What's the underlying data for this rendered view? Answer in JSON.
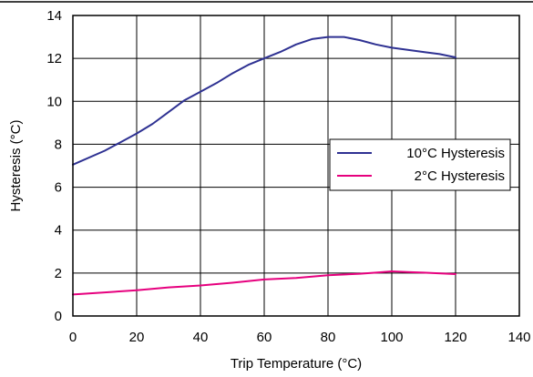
{
  "chart_data": {
    "type": "line",
    "xlabel": "Trip Temperature (°C)",
    "ylabel": "Hysteresis (°C)",
    "xlim": [
      0,
      140
    ],
    "ylim": [
      0,
      14
    ],
    "xticks": [
      0,
      20,
      40,
      60,
      80,
      100,
      120,
      140
    ],
    "yticks": [
      0,
      2,
      4,
      6,
      8,
      10,
      12,
      14
    ],
    "grid": true,
    "legend_position": "right",
    "series": [
      {
        "name": "10°C Hysteresis",
        "color": "#2e3192",
        "x": [
          0,
          10,
          15,
          20,
          25,
          30,
          35,
          40,
          45,
          50,
          55,
          60,
          65,
          70,
          75,
          80,
          85,
          90,
          95,
          100,
          105,
          110,
          115,
          120
        ],
        "y": [
          7.05,
          7.7,
          8.1,
          8.5,
          8.95,
          9.5,
          10.05,
          10.45,
          10.85,
          11.3,
          11.7,
          12.0,
          12.3,
          12.65,
          12.9,
          13.0,
          13.0,
          12.85,
          12.65,
          12.5,
          12.4,
          12.3,
          12.2,
          12.05
        ]
      },
      {
        "name": "2°C Hysteresis",
        "color": "#e6007e",
        "x": [
          0,
          10,
          20,
          30,
          40,
          50,
          60,
          70,
          80,
          90,
          95,
          100,
          105,
          110,
          120
        ],
        "y": [
          1.0,
          1.1,
          1.2,
          1.33,
          1.42,
          1.55,
          1.7,
          1.77,
          1.9,
          1.97,
          2.02,
          2.08,
          2.05,
          2.02,
          1.95
        ]
      }
    ]
  }
}
